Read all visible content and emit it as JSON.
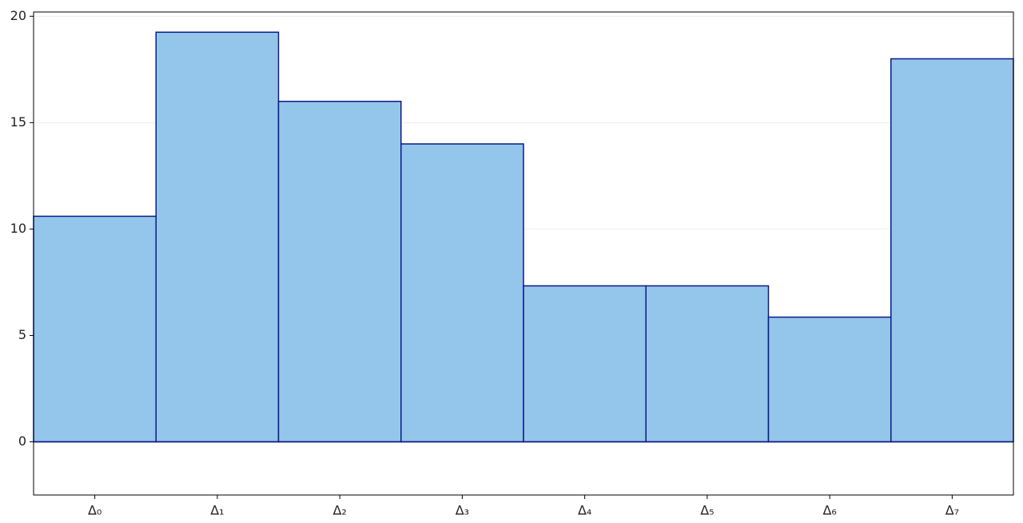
{
  "chart_data": {
    "type": "bar",
    "categories": [
      "Δ₀",
      "Δ₁",
      "Δ₂",
      "Δ₃",
      "Δ₄",
      "Δ₅",
      "Δ₆",
      "Δ₇"
    ],
    "values": [
      10.6,
      19.25,
      16,
      14,
      7.33,
      7.33,
      5.86,
      18
    ],
    "color": "#93c6ea",
    "edge_color": "#0b1a8a",
    "ylim": [
      -2.5,
      20.2
    ],
    "yticks": [
      0,
      5,
      10,
      15,
      20
    ],
    "grid": true
  }
}
